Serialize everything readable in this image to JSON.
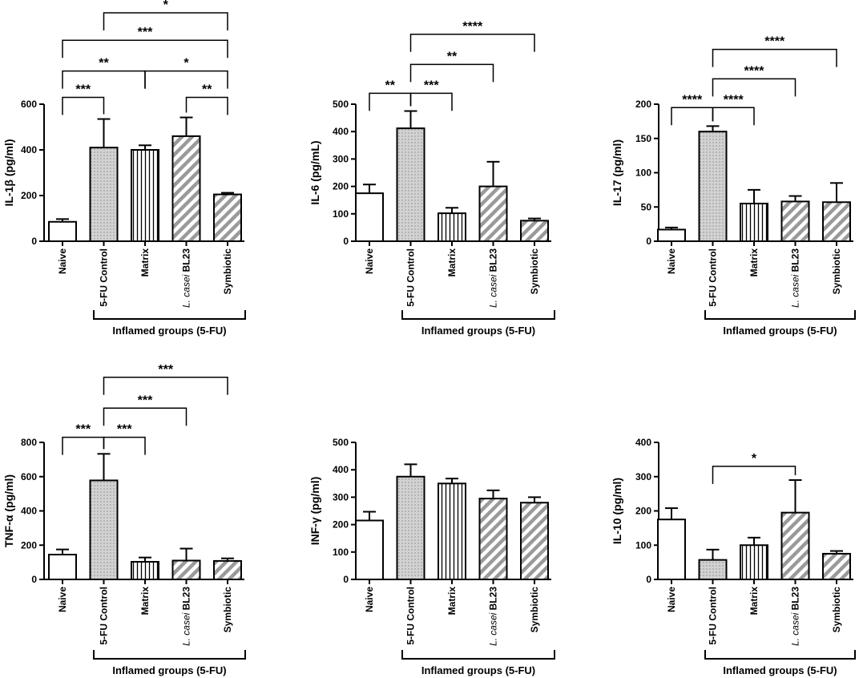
{
  "chart_data": [
    {
      "type": "bar",
      "title": "",
      "ylabel": "IL-1β (pg/ml)",
      "xlabel": "",
      "ylim": [
        0,
        600
      ],
      "yticks": [
        0,
        200,
        400,
        600
      ],
      "categories": [
        {
          "label": "Naive"
        },
        {
          "label": "5-FU Control"
        },
        {
          "label": "Matrix"
        },
        {
          "italic": "L. casei",
          "rest": " BL23"
        },
        {
          "label": "Symbiotic"
        }
      ],
      "values": [
        85,
        410,
        400,
        460,
        205
      ],
      "errors": [
        12,
        125,
        20,
        82,
        7
      ],
      "group_label": "Inflamed groups (5-FU)",
      "significance": [
        {
          "from": 0,
          "to": 1,
          "y": 630,
          "label": "***"
        },
        {
          "from": 3,
          "to": 4,
          "y": 630,
          "label": "**"
        },
        {
          "from": 0,
          "to": 2,
          "y": 745,
          "label": "**"
        },
        {
          "from": 2,
          "to": 4,
          "y": 745,
          "label": "*"
        },
        {
          "from": 0,
          "to": 4,
          "y": 880,
          "label": "***"
        },
        {
          "from": 1,
          "to": 4,
          "y": 1000,
          "label": "*"
        }
      ]
    },
    {
      "type": "bar",
      "title": "",
      "ylabel": "IL-6 (pg/mL)",
      "xlabel": "",
      "ylim": [
        0,
        500
      ],
      "yticks": [
        0,
        100,
        200,
        300,
        400,
        500
      ],
      "categories": [
        {
          "label": "Naive"
        },
        {
          "label": "5-FU Control"
        },
        {
          "label": "Matrix"
        },
        {
          "italic": "L. casei",
          "rest": " BL23"
        },
        {
          "label": "Symbiotic"
        }
      ],
      "values": [
        175,
        412,
        102,
        200,
        75
      ],
      "errors": [
        32,
        63,
        20,
        90,
        8
      ],
      "group_label": "Inflamed groups (5-FU)",
      "significance": [
        {
          "from": 0,
          "to": 1,
          "y": 540,
          "label": "**"
        },
        {
          "from": 1,
          "to": 2,
          "y": 540,
          "label": "***"
        },
        {
          "from": 1,
          "to": 3,
          "y": 645,
          "label": "**"
        },
        {
          "from": 1,
          "to": 4,
          "y": 755,
          "label": "****"
        }
      ]
    },
    {
      "type": "bar",
      "title": "",
      "ylabel": "IL-17 (pg/ml)",
      "xlabel": "",
      "ylim": [
        0,
        200
      ],
      "yticks": [
        0,
        50,
        100,
        150,
        200
      ],
      "categories": [
        {
          "label": "Naive"
        },
        {
          "label": "5-FU Control"
        },
        {
          "label": "Matrix"
        },
        {
          "italic": "L. casei",
          "rest": " BL23"
        },
        {
          "label": "Symbiotic"
        }
      ],
      "values": [
        17,
        160,
        55,
        58,
        57
      ],
      "errors": [
        3,
        8,
        20,
        8,
        28
      ],
      "group_label": "Inflamed groups (5-FU)",
      "significance": [
        {
          "from": 0,
          "to": 1,
          "y": 195,
          "label": "****"
        },
        {
          "from": 1,
          "to": 2,
          "y": 195,
          "label": "****"
        },
        {
          "from": 1,
          "to": 3,
          "y": 237,
          "label": "****"
        },
        {
          "from": 1,
          "to": 4,
          "y": 280,
          "label": "****"
        }
      ]
    },
    {
      "type": "bar",
      "title": "",
      "ylabel": "TNF-α (pg/ml)",
      "xlabel": "",
      "ylim": [
        0,
        800
      ],
      "yticks": [
        0,
        200,
        400,
        600,
        800
      ],
      "categories": [
        {
          "label": "Naive"
        },
        {
          "label": "5-FU Control"
        },
        {
          "label": "Matrix"
        },
        {
          "italic": "L. casei",
          "rest": " BL23"
        },
        {
          "label": "Symbiotic"
        }
      ],
      "values": [
        145,
        578,
        103,
        110,
        108
      ],
      "errors": [
        30,
        155,
        25,
        70,
        15
      ],
      "group_label": "Inflamed groups (5-FU)",
      "significance": [
        {
          "from": 0,
          "to": 1,
          "y": 830,
          "label": "***"
        },
        {
          "from": 1,
          "to": 2,
          "y": 830,
          "label": "***"
        },
        {
          "from": 1,
          "to": 3,
          "y": 1000,
          "label": "***"
        },
        {
          "from": 1,
          "to": 4,
          "y": 1180,
          "label": "***"
        }
      ]
    },
    {
      "type": "bar",
      "title": "",
      "ylabel": "INF-γ (pg/ml)",
      "xlabel": "",
      "ylim": [
        0,
        500
      ],
      "yticks": [
        0,
        100,
        200,
        300,
        400,
        500
      ],
      "categories": [
        {
          "label": "Naive"
        },
        {
          "label": "5-FU Control"
        },
        {
          "label": "Matrix"
        },
        {
          "italic": "L. casei",
          "rest": " BL23"
        },
        {
          "label": "Symbiotic"
        }
      ],
      "values": [
        215,
        375,
        350,
        295,
        280
      ],
      "errors": [
        32,
        45,
        18,
        30,
        20
      ],
      "group_label": "Inflamed groups (5-FU)",
      "significance": []
    },
    {
      "type": "bar",
      "title": "",
      "ylabel": "IL-10 (pg/ml)",
      "xlabel": "",
      "ylim": [
        0,
        400
      ],
      "yticks": [
        0,
        100,
        200,
        300,
        400
      ],
      "categories": [
        {
          "label": "Naive"
        },
        {
          "label": "5-FU Control"
        },
        {
          "label": "Matrix"
        },
        {
          "italic": "L. casei",
          "rest": " BL23"
        },
        {
          "label": "Symbiotic"
        }
      ],
      "values": [
        175,
        57,
        100,
        195,
        75
      ],
      "errors": [
        33,
        30,
        22,
        95,
        8
      ],
      "group_label": "Inflamed groups (5-FU)",
      "significance": [
        {
          "from": 1,
          "to": 3,
          "y": 330,
          "label": "*"
        }
      ]
    }
  ]
}
